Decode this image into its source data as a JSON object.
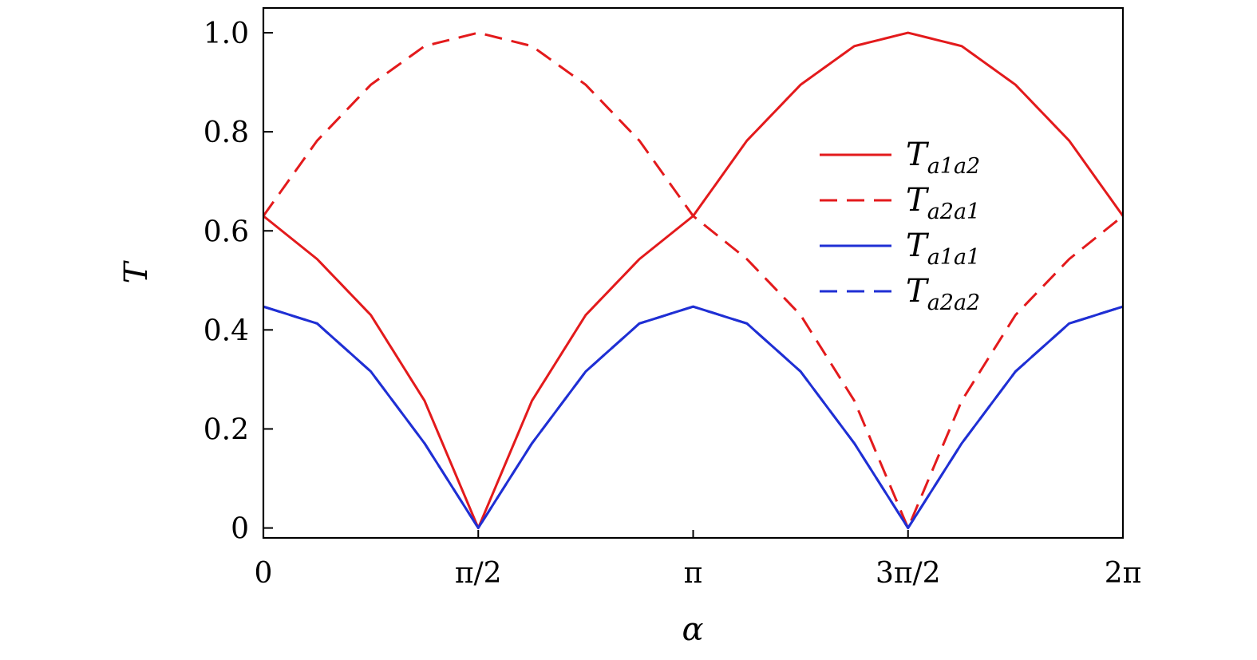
{
  "chart_data": {
    "type": "line",
    "xlabel": "α",
    "ylabel": "T",
    "xlim": [
      0,
      6.283185307
    ],
    "ylim": [
      -0.02,
      1.05
    ],
    "x_ticks": [
      {
        "value": 0,
        "label": "0"
      },
      {
        "value": 1.5707963268,
        "label": "π/2"
      },
      {
        "value": 3.1415926536,
        "label": "π"
      },
      {
        "value": 4.7123889804,
        "label": "3π/2"
      },
      {
        "value": 6.2831853072,
        "label": "2π"
      }
    ],
    "y_ticks": [
      {
        "value": 0,
        "label": "0"
      },
      {
        "value": 0.2,
        "label": "0.2"
      },
      {
        "value": 0.4,
        "label": "0.4"
      },
      {
        "value": 0.6,
        "label": "0.6"
      },
      {
        "value": 0.8,
        "label": "0.8"
      },
      {
        "value": 1.0,
        "label": "1.0"
      }
    ],
    "legend_position": "upper-right",
    "series": [
      {
        "name": "Ta1a2",
        "legend_main": "T",
        "legend_sub": "a1a2",
        "color": "#e31a1c",
        "dash": "solid",
        "x": [
          0,
          0.3927,
          0.7854,
          1.1781,
          1.5708,
          1.9635,
          2.3562,
          2.7489,
          3.1416,
          3.5343,
          3.927,
          4.3197,
          4.7124,
          5.1051,
          5.4978,
          5.8905,
          6.2832
        ],
        "y": [
          0.63,
          0.543,
          0.43,
          0.257,
          0.0,
          0.257,
          0.43,
          0.543,
          0.63,
          0.782,
          0.895,
          0.973,
          1.0,
          0.973,
          0.895,
          0.782,
          0.63
        ]
      },
      {
        "name": "Ta2a1",
        "legend_main": "T",
        "legend_sub": "a2a1",
        "color": "#e31a1c",
        "dash": "dashed",
        "x": [
          0,
          0.3927,
          0.7854,
          1.1781,
          1.5708,
          1.9635,
          2.3562,
          2.7489,
          3.1416,
          3.5343,
          3.927,
          4.3197,
          4.7124,
          5.1051,
          5.4978,
          5.8905,
          6.2832
        ],
        "y": [
          0.63,
          0.782,
          0.895,
          0.973,
          1.0,
          0.973,
          0.895,
          0.782,
          0.63,
          0.543,
          0.43,
          0.257,
          0.0,
          0.257,
          0.43,
          0.543,
          0.63
        ]
      },
      {
        "name": "Ta1a1",
        "legend_main": "T",
        "legend_sub": "a1a1",
        "color": "#1f2fd4",
        "dash": "solid",
        "x": [
          0,
          0.3927,
          0.7854,
          1.1781,
          1.5708,
          1.9635,
          2.3562,
          2.7489,
          3.1416,
          3.5343,
          3.927,
          4.3197,
          4.7124,
          5.1051,
          5.4978,
          5.8905,
          6.2832
        ],
        "y": [
          0.447,
          0.413,
          0.316,
          0.171,
          0.0,
          0.171,
          0.316,
          0.413,
          0.447,
          0.413,
          0.316,
          0.171,
          0.0,
          0.171,
          0.316,
          0.413,
          0.447
        ]
      },
      {
        "name": "Ta2a2",
        "legend_main": "T",
        "legend_sub": "a2a2",
        "color": "#1f2fd4",
        "dash": "dashed",
        "x": [
          0,
          0.3927,
          0.7854,
          1.1781,
          1.5708,
          1.9635,
          2.3562,
          2.7489,
          3.1416,
          3.5343,
          3.927,
          4.3197,
          4.7124,
          5.1051,
          5.4978,
          5.8905,
          6.2832
        ],
        "y": [
          0.447,
          0.413,
          0.316,
          0.171,
          0.0,
          0.171,
          0.316,
          0.413,
          0.447,
          0.413,
          0.316,
          0.171,
          0.0,
          0.171,
          0.316,
          0.413,
          0.447
        ]
      }
    ]
  }
}
